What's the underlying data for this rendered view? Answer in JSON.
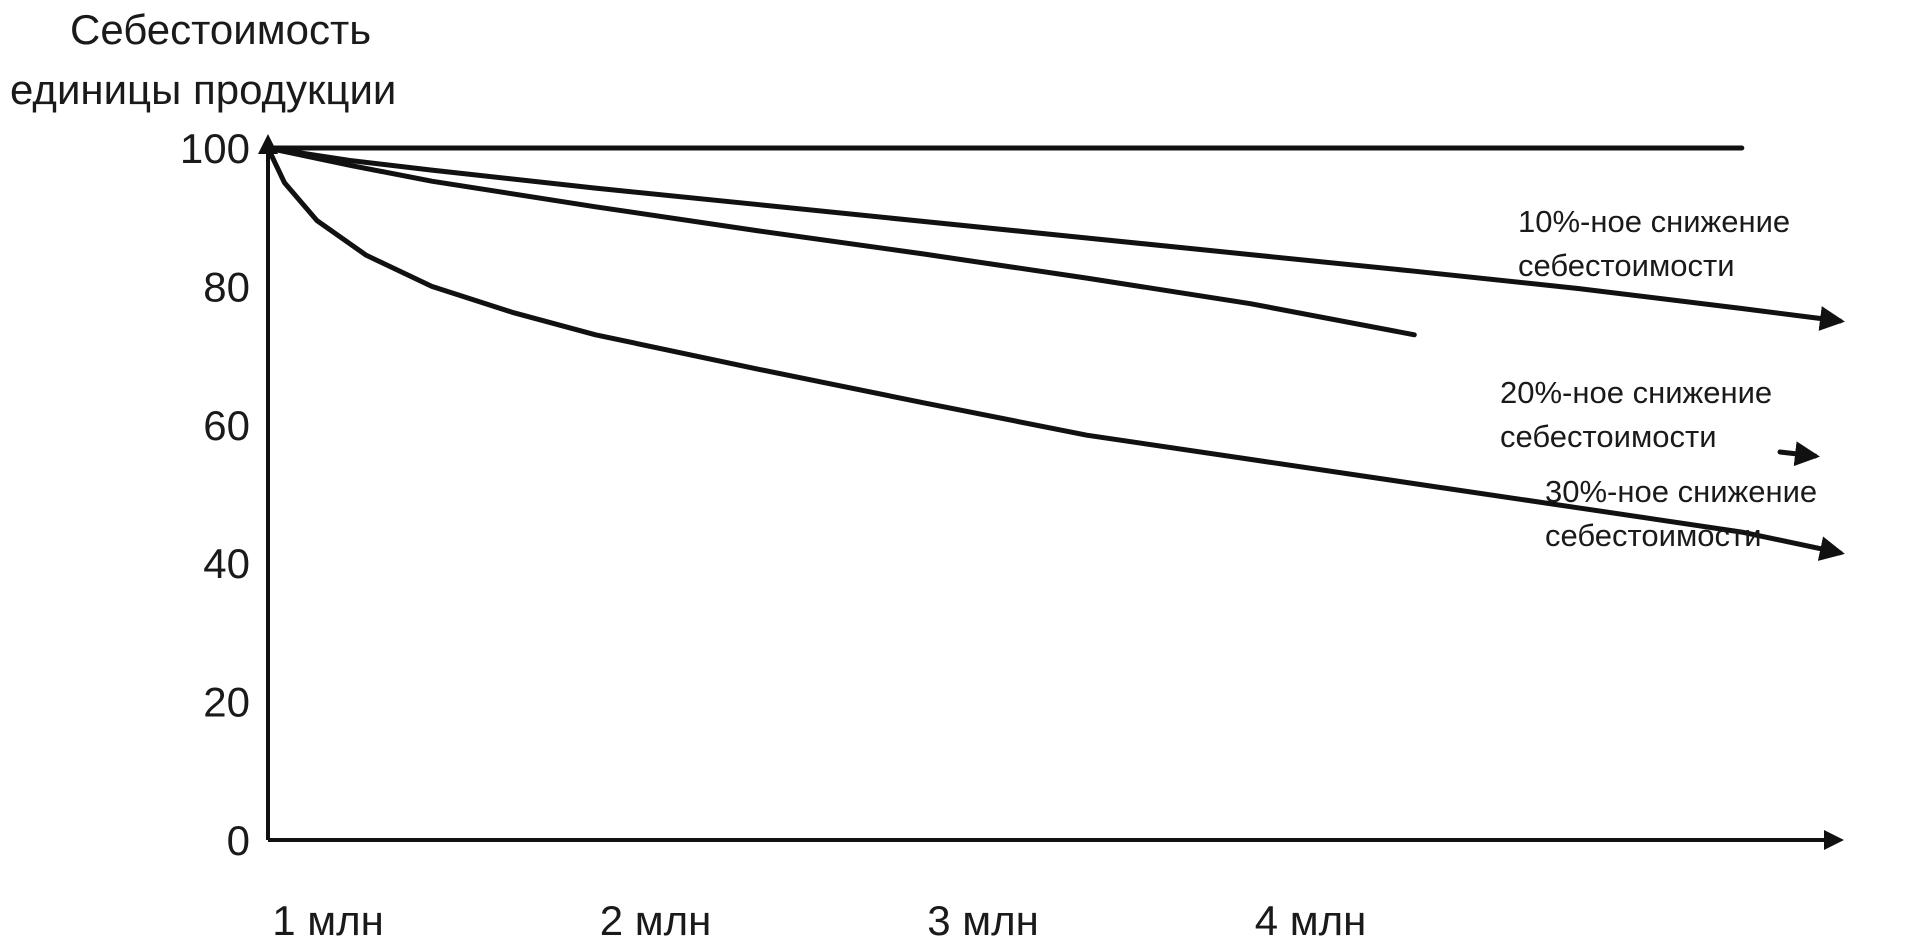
{
  "chart_data": {
    "type": "line",
    "ylabel": [
      "Себестоимость",
      "единицы продукции"
    ],
    "xlabel": "",
    "ylim": [
      0,
      100
    ],
    "xlim": [
      1,
      5.8
    ],
    "y_ticks": [
      0,
      20,
      40,
      60,
      80,
      100
    ],
    "x_ticks": [
      {
        "value": 1,
        "label": "1 млн"
      },
      {
        "value": 2,
        "label": "2 млн"
      },
      {
        "value": 3,
        "label": "3 млн"
      },
      {
        "value": 4,
        "label": "4 млн"
      }
    ],
    "series": [
      {
        "id": "flat",
        "x": [
          1,
          1.5,
          2,
          2.5,
          3,
          3.5,
          4,
          4.5,
          5,
          5.5
        ],
        "y": [
          100,
          100,
          100,
          100,
          100,
          100,
          100,
          100,
          100,
          100
        ],
        "arrow": false
      },
      {
        "id": "reduction-10",
        "x": [
          1,
          1.25,
          1.5,
          2,
          2.5,
          3,
          3.5,
          4,
          4.5,
          5,
          5.5,
          5.8
        ],
        "y": [
          100,
          98.2,
          96.8,
          94.2,
          91.8,
          89.4,
          87.0,
          84.6,
          82.2,
          79.7,
          76.8,
          75.0
        ],
        "arrow": true
      },
      {
        "id": "reduction-20",
        "x": [
          1,
          1.25,
          1.5,
          2,
          2.5,
          3,
          3.5,
          4,
          4.5
        ],
        "y": [
          100,
          97.5,
          95.2,
          91.5,
          88.0,
          84.7,
          81.2,
          77.5,
          73.0
        ],
        "arrow": false
      },
      {
        "id": "reduction-30",
        "x": [
          1,
          1.05,
          1.15,
          1.3,
          1.5,
          1.75,
          2,
          2.5,
          3,
          3.5,
          4,
          4.5,
          5,
          5.5,
          5.8
        ],
        "y": [
          100,
          95.0,
          89.5,
          84.5,
          80.0,
          76.2,
          73.0,
          68.0,
          63.2,
          58.5,
          55.0,
          51.5,
          48.0,
          44.5,
          41.5
        ],
        "arrow": true
      }
    ],
    "annotations": [
      {
        "for": "reduction-10",
        "lines": [
          "10%-ное снижение",
          "себестоимости"
        ],
        "pos": "a10"
      },
      {
        "for": "reduction-20",
        "lines": [
          "20%-ное снижение",
          "себестоимости"
        ],
        "pos": "a20"
      },
      {
        "for": "reduction-30",
        "lines": [
          "30%-ное снижение",
          "себестоимости"
        ],
        "pos": "a30"
      }
    ]
  }
}
